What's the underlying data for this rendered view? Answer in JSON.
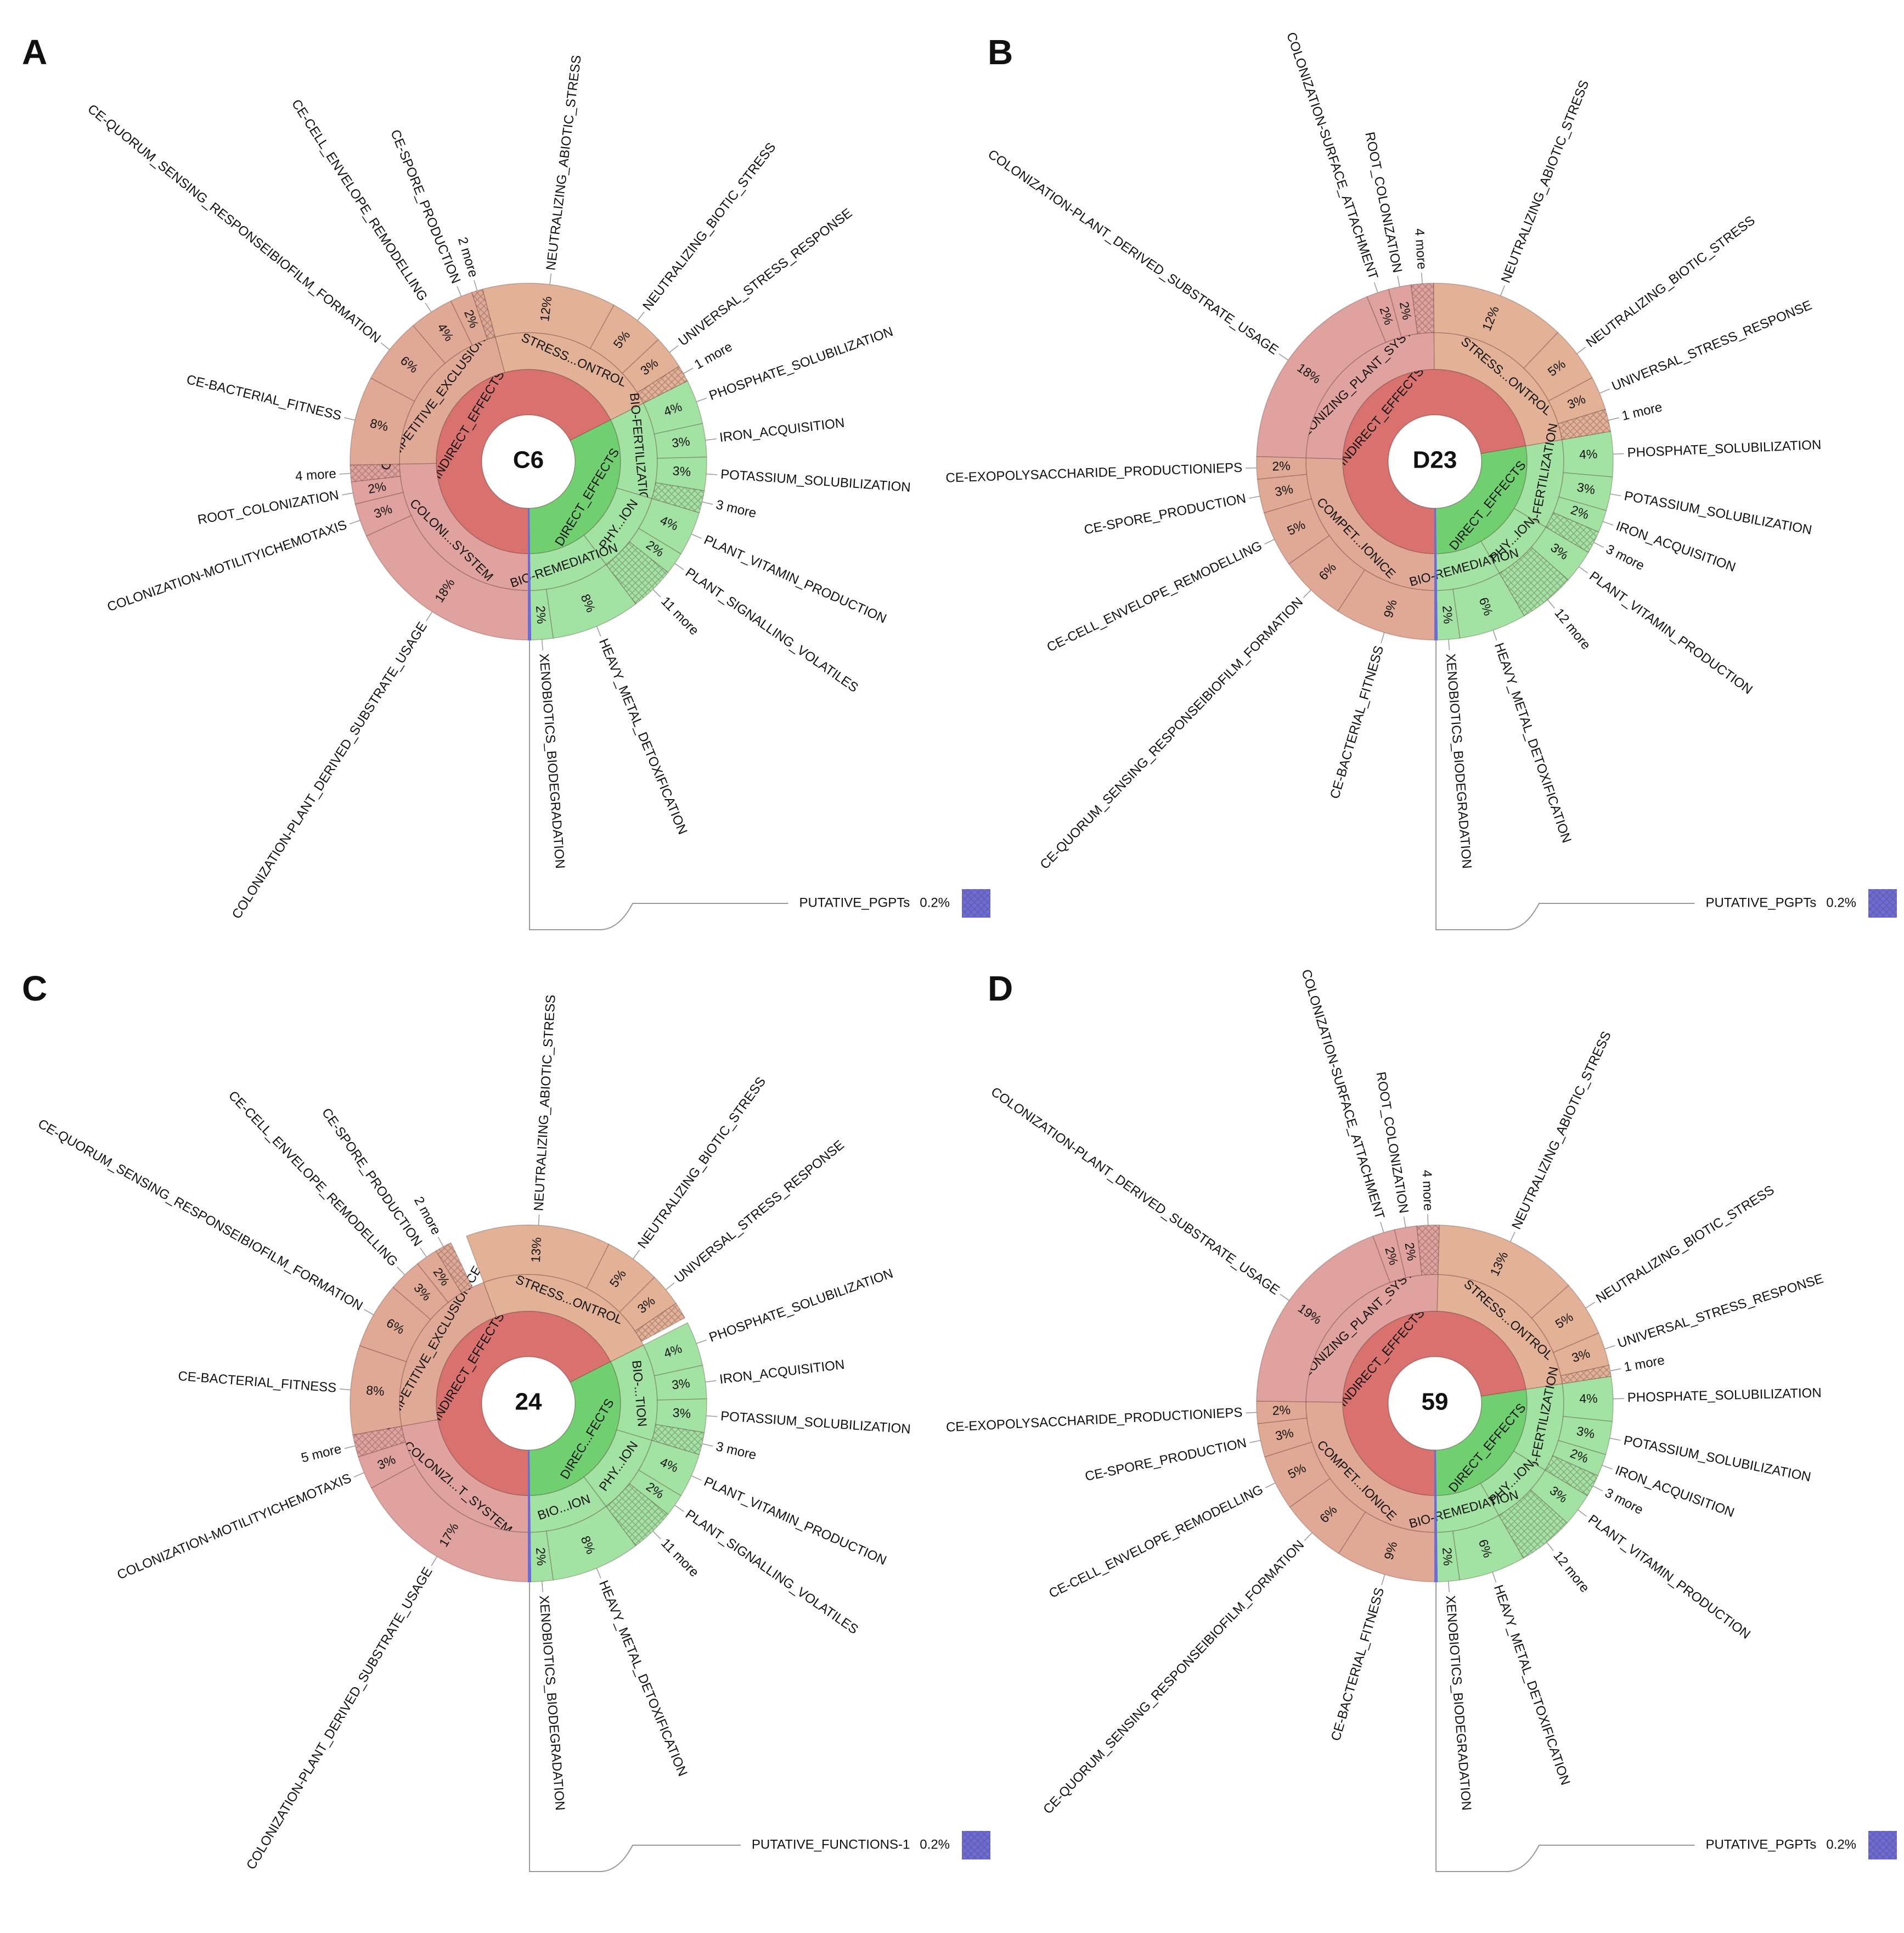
{
  "chart_data": [
    {
      "type": "sunburst",
      "panel": "A",
      "center": "C6",
      "nodes": [
        {
          "name": "INDIRECT_EFFECTS",
          "value": 67,
          "color": "#d9726f",
          "children": [
            {
              "name": "COLONI...SYSTEM",
              "value": 24.5,
              "color": "#e0a29e",
              "children": [
                {
                  "name": "COLONIZATION-PLANT_DERIVED_SUBSTRATE_USAGE",
                  "value": 18,
                  "value_label": "18%"
                },
                {
                  "name": "COLONIZATION-MOTILITYICHEMOTAXIS",
                  "value": 3,
                  "value_label": "3%"
                },
                {
                  "name": "ROOT_COLONIZATION",
                  "value": 2,
                  "value_label": "2%"
                },
                {
                  "name": "4 more",
                  "value": 1.5,
                  "hatched": true
                }
              ]
            },
            {
              "name": "COMPETITIVE_EXCLUSIONICE",
              "value": 21,
              "color": "#e0a995",
              "children": [
                {
                  "name": "CE-BACTERIAL_FITNESS",
                  "value": 8,
                  "value_label": "8%"
                },
                {
                  "name": "CE-QUORUM_SENSING_RESPONSEIBIOFILM_FORMATION",
                  "value": 6,
                  "value_label": "6%"
                },
                {
                  "name": "CE-CELL_ENVELOPE_REMODELLING",
                  "value": 4,
                  "value_label": "4%"
                },
                {
                  "name": "CE-SPORE_PRODUCTION",
                  "value": 2,
                  "value_label": "2%"
                },
                {
                  "name": "2 more",
                  "value": 1,
                  "hatched": true
                }
              ]
            },
            {
              "name": "STRESS...ONTROL",
              "value": 21.5,
              "color": "#e2b196",
              "children": [
                {
                  "name": "NEUTRALIZING_ABIOTIC_STRESS",
                  "value": 12,
                  "value_label": "12%"
                },
                {
                  "name": "NEUTRALIZING_BIOTIC_STRESS",
                  "value": 5,
                  "value_label": "5%"
                },
                {
                  "name": "UNIVERSAL_STRESS_RESPONSE",
                  "value": 3,
                  "value_label": "3%"
                },
                {
                  "name": "1 more",
                  "value": 1.5,
                  "hatched": true
                }
              ]
            }
          ]
        },
        {
          "name": "DIRECT_EFFECTS",
          "value": 32,
          "color": "#70d070",
          "children": [
            {
              "name": "BIO-FERTILIZATION",
              "value": 12,
              "color": "#a2e2a2",
              "children": [
                {
                  "name": "PHOSPHATE_SOLUBILIZATION",
                  "value": 4,
                  "value_label": "4%"
                },
                {
                  "name": "IRON_ACQUISITION",
                  "value": 3,
                  "value_label": "3%"
                },
                {
                  "name": "POTASSIUM_SOLUBILIZATION",
                  "value": 3,
                  "value_label": "3%"
                },
                {
                  "name": "3 more",
                  "value": 2,
                  "hatched": true
                }
              ]
            },
            {
              "name": "PHY...ION",
              "value": 10,
              "color": "#a2e2a2",
              "children": [
                {
                  "name": "PLANT_VITAMIN_PRODUCTION",
                  "value": 4,
                  "value_label": "4%"
                },
                {
                  "name": "PLANT_SIGNALLING_VOLATILES",
                  "value": 2,
                  "value_label": "2%"
                },
                {
                  "name": "11 more",
                  "value": 4,
                  "hatched": true
                }
              ]
            },
            {
              "name": "BIO-REMEDIATION",
              "value": 10,
              "color": "#a2e2a2",
              "children": [
                {
                  "name": "HEAVY_METAL_DETOXIFICATION",
                  "value": 8,
                  "value_label": "8%"
                },
                {
                  "name": "XENOBIOTICS_BIODEGRADATION",
                  "value": 2,
                  "value_label": "2%"
                }
              ]
            }
          ]
        },
        {
          "name": "PUTATIVE_PGPTs",
          "value": 0.2,
          "value_label": "0.2%",
          "color": "#6c6cd8"
        }
      ]
    },
    {
      "type": "sunburst",
      "panel": "B",
      "center": "D23",
      "nodes": [
        {
          "name": "INDIRECT_EFFECTS",
          "value": 71,
          "color": "#d9726f",
          "children": [
            {
              "name": "COMPET...IONICE",
              "value": 25,
              "color": "#e0a995",
              "children": [
                {
                  "name": "CE-BACTERIAL_FITNESS",
                  "value": 9,
                  "value_label": "9%"
                },
                {
                  "name": "CE-QUORUM_SENSING_RESPONSEIBIOFILM_FORMATION",
                  "value": 6,
                  "value_label": "6%"
                },
                {
                  "name": "CE-CELL_ENVELOPE_REMODELLING",
                  "value": 5,
                  "value_label": "5%"
                },
                {
                  "name": "CE-SPORE_PRODUCTION",
                  "value": 3,
                  "value_label": "3%"
                },
                {
                  "name": "CE-EXOPOLYSACCHARIDE_PRODUCTIONIEPS",
                  "value": 2,
                  "value_label": "2%"
                }
              ]
            },
            {
              "name": "COLONIZING_PLANT_SYSTEM",
              "value": 24,
              "color": "#e0a29e",
              "children": [
                {
                  "name": "COLONIZATION-PLANT_DERIVED_SUBSTRATE_USAGE",
                  "value": 18,
                  "value_label": "18%"
                },
                {
                  "name": "COLONIZATION-SURFACE_ATTACHMENT",
                  "value": 2,
                  "value_label": "2%"
                },
                {
                  "name": "ROOT_COLONIZATION",
                  "value": 2,
                  "value_label": "2%"
                },
                {
                  "name": "4 more",
                  "value": 2,
                  "hatched": true
                }
              ]
            },
            {
              "name": "STRESS...ONTROL",
              "value": 22,
              "color": "#e2b196",
              "children": [
                {
                  "name": "NEUTRALIZING_ABIOTIC_STRESS",
                  "value": 12,
                  "value_label": "12%"
                },
                {
                  "name": "NEUTRALIZING_BIOTIC_STRESS",
                  "value": 5,
                  "value_label": "5%"
                },
                {
                  "name": "UNIVERSAL_STRESS_RESPONSE",
                  "value": 3,
                  "value_label": "3%"
                },
                {
                  "name": "1 more",
                  "value": 2,
                  "hatched": true
                }
              ]
            }
          ]
        },
        {
          "name": "DIRECT_EFFECTS",
          "value": 27,
          "color": "#70d070",
          "children": [
            {
              "name": "BIO-FERTILIZATION",
              "value": 11,
              "color": "#a2e2a2",
              "children": [
                {
                  "name": "PHOSPHATE_SOLUBILIZATION",
                  "value": 4,
                  "value_label": "4%"
                },
                {
                  "name": "POTASSIUM_SOLUBILIZATION",
                  "value": 3,
                  "value_label": "3%"
                },
                {
                  "name": "IRON_ACQUISITION",
                  "value": 2,
                  "value_label": "2%"
                },
                {
                  "name": "3 more",
                  "value": 2,
                  "hatched": true
                }
              ]
            },
            {
              "name": "PHY...ION",
              "value": 8,
              "color": "#a2e2a2",
              "children": [
                {
                  "name": "PLANT_VITAMIN_PRODUCTION",
                  "value": 3,
                  "value_label": "3%"
                },
                {
                  "name": "12 more",
                  "value": 5,
                  "hatched": true
                }
              ]
            },
            {
              "name": "BIO-REMEDIATION",
              "value": 8,
              "color": "#a2e2a2",
              "children": [
                {
                  "name": "HEAVY_METAL_DETOXIFICATION",
                  "value": 6,
                  "value_label": "6%"
                },
                {
                  "name": "XENOBIOTICS_BIODEGRADATION",
                  "value": 2,
                  "value_label": "2%"
                }
              ]
            }
          ]
        },
        {
          "name": "PUTATIVE_PGPTs",
          "value": 0.2,
          "value_label": "0.2%",
          "color": "#6c6cd8"
        }
      ]
    },
    {
      "type": "sunburst",
      "panel": "C",
      "center": "24",
      "nodes": [
        {
          "name": "INDIRECT_EFFECTS",
          "value": 67,
          "color": "#d9726f",
          "children": [
            {
              "name": "COLONIZI...T_SYSTEM",
              "value": 22,
              "color": "#e0a29e",
              "children": [
                {
                  "name": "COLONIZATION-PLANT_DERIVED_SUBSTRATE_USAGE",
                  "value": 17,
                  "value_label": "17%"
                },
                {
                  "name": "COLONIZATION-MOTILITYICHEMOTAXIS",
                  "value": 3,
                  "value_label": "3%"
                },
                {
                  "name": "5 more",
                  "value": 2,
                  "hatched": true
                }
              ]
            },
            {
              "name": "COMPETITIVE_EXCLUSIONICE",
              "value": 22,
              "color": "#e0a995",
              "children": [
                {
                  "name": "CE-BACTERIAL_FITNESS",
                  "value": 8,
                  "value_label": "8%"
                },
                {
                  "name": "CE-QUORUM_SENSING_RESPONSEIBIOFILM_FORMATION",
                  "value": 6,
                  "value_label": "6%"
                },
                {
                  "name": "CE-CELL_ENVELOPE_REMODELLING",
                  "value": 3,
                  "value_label": "3%"
                },
                {
                  "name": "CE-SPORE_PRODUCTION",
                  "value": 2,
                  "value_label": "2%"
                },
                {
                  "name": "2 more",
                  "value": 1.5,
                  "hatched": true
                }
              ]
            },
            {
              "name": "STRESS...ONTROL",
              "value": 23,
              "color": "#e2b196",
              "children": [
                {
                  "name": "NEUTRALIZING_ABIOTIC_STRESS",
                  "value": 13,
                  "value_label": "13%"
                },
                {
                  "name": "NEUTRALIZING_BIOTIC_STRESS",
                  "value": 5,
                  "value_label": "5%"
                },
                {
                  "name": "UNIVERSAL_STRESS_RESPONSE",
                  "value": 3,
                  "value_label": "3%"
                },
                {
                  "name": null,
                  "value": 1.5,
                  "hatched": true
                }
              ]
            }
          ]
        },
        {
          "name": "DIREC...FECTS",
          "value": 32,
          "color": "#70d070",
          "children": [
            {
              "name": "BIO-...TION",
              "value": 12,
              "color": "#a2e2a2",
              "children": [
                {
                  "name": "PHOSPHATE_SOLUBILIZATION",
                  "value": 4,
                  "value_label": "4%"
                },
                {
                  "name": "IRON_ACQUISITION",
                  "value": 3,
                  "value_label": "3%"
                },
                {
                  "name": "POTASSIUM_SOLUBILIZATION",
                  "value": 3,
                  "value_label": "3%"
                },
                {
                  "name": "3 more",
                  "value": 2,
                  "hatched": true
                }
              ]
            },
            {
              "name": "PHY...ION",
              "value": 10,
              "color": "#a2e2a2",
              "children": [
                {
                  "name": "PLANT_VITAMIN_PRODUCTION",
                  "value": 4,
                  "value_label": "4%"
                },
                {
                  "name": "PLANT_SIGNALLING_VOLATILES",
                  "value": 2,
                  "value_label": "2%"
                },
                {
                  "name": "11 more",
                  "value": 4,
                  "hatched": true
                }
              ]
            },
            {
              "name": "BIO...ION",
              "value": 10,
              "color": "#a2e2a2",
              "children": [
                {
                  "name": "HEAVY_METAL_DETOXIFICATION",
                  "value": 8,
                  "value_label": "8%"
                },
                {
                  "name": "XENOBIOTICS_BIODEGRADATION",
                  "value": 2,
                  "value_label": "2%"
                }
              ]
            }
          ]
        },
        {
          "name": "PUTATIVE_FUNCTIONS-1",
          "value": 0.2,
          "value_label": "0.2%",
          "color": "#6c6cd8"
        }
      ]
    },
    {
      "type": "sunburst",
      "panel": "D",
      "center": "59",
      "nodes": [
        {
          "name": "INDIRECT_EFFECTS",
          "value": 72,
          "color": "#d9726f",
          "children": [
            {
              "name": "COMPET...IONICE",
              "value": 25,
              "color": "#e0a995",
              "children": [
                {
                  "name": "CE-BACTERIAL_FITNESS",
                  "value": 9,
                  "value_label": "9%"
                },
                {
                  "name": "CE-QUORUM_SENSING_RESPONSEIBIOFILM_FORMATION",
                  "value": 6,
                  "value_label": "6%"
                },
                {
                  "name": "CE-CELL_ENVELOPE_REMODELLING",
                  "value": 5,
                  "value_label": "5%"
                },
                {
                  "name": "CE-SPORE_PRODUCTION",
                  "value": 3,
                  "value_label": "3%"
                },
                {
                  "name": "CE-EXOPOLYSACCHARIDE_PRODUCTIONIEPS",
                  "value": 2,
                  "value_label": "2%"
                }
              ]
            },
            {
              "name": "COLONIZING_PLANT_SYSTEM",
              "value": 25,
              "color": "#e0a29e",
              "children": [
                {
                  "name": "COLONIZATION-PLANT_DERIVED_SUBSTRATE_USAGE",
                  "value": 19,
                  "value_label": "19%"
                },
                {
                  "name": "COLONIZATION-SURFACE_ATTACHMENT",
                  "value": 2,
                  "value_label": "2%"
                },
                {
                  "name": "ROOT_COLONIZATION",
                  "value": 2,
                  "value_label": "2%"
                },
                {
                  "name": "4 more",
                  "value": 2,
                  "hatched": true
                }
              ]
            },
            {
              "name": "STRESS...ONTROL",
              "value": 22,
              "color": "#e2b196",
              "children": [
                {
                  "name": "NEUTRALIZING_ABIOTIC_STRESS",
                  "value": 13,
                  "value_label": "13%"
                },
                {
                  "name": "NEUTRALIZING_BIOTIC_STRESS",
                  "value": 5,
                  "value_label": "5%"
                },
                {
                  "name": "UNIVERSAL_STRESS_RESPONSE",
                  "value": 3,
                  "value_label": "3%"
                },
                {
                  "name": "1 more",
                  "value": 1,
                  "hatched": true
                }
              ]
            }
          ]
        },
        {
          "name": "DIRECT_EFFECTS",
          "value": 27,
          "color": "#70d070",
          "children": [
            {
              "name": "BIO-FERTILIZATION",
              "value": 11,
              "color": "#a2e2a2",
              "children": [
                {
                  "name": "PHOSPHATE_SOLUBILIZATION",
                  "value": 4,
                  "value_label": "4%"
                },
                {
                  "name": "POTASSIUM_SOLUBILIZATION",
                  "value": 3,
                  "value_label": "3%"
                },
                {
                  "name": "IRON_ACQUISITION",
                  "value": 2,
                  "value_label": "2%"
                },
                {
                  "name": "3 more",
                  "value": 2,
                  "hatched": true
                }
              ]
            },
            {
              "name": "PHY...ION",
              "value": 8,
              "color": "#a2e2a2",
              "children": [
                {
                  "name": "PLANT_VITAMIN_PRODUCTION",
                  "value": 3,
                  "value_label": "3%"
                },
                {
                  "name": "12 more",
                  "value": 5,
                  "hatched": true
                }
              ]
            },
            {
              "name": "BIO-REMEDIATION",
              "value": 8,
              "color": "#a2e2a2",
              "children": [
                {
                  "name": "HEAVY_METAL_DETOXIFICATION",
                  "value": 6,
                  "value_label": "6%"
                },
                {
                  "name": "XENOBIOTICS_BIODEGRADATION",
                  "value": 2,
                  "value_label": "2%"
                }
              ]
            }
          ]
        },
        {
          "name": "PUTATIVE_PGPTs",
          "value": 0.2,
          "value_label": "0.2%",
          "color": "#6c6cd8"
        }
      ]
    }
  ]
}
